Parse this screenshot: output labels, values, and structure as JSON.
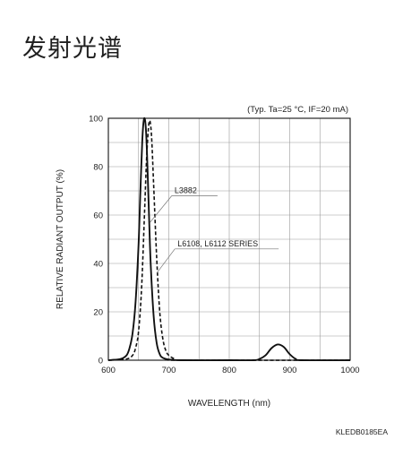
{
  "page": {
    "title": "发射光谱",
    "figure_code": "KLEDB0185EA"
  },
  "chart_data": {
    "type": "line",
    "title": "",
    "condition_note": "(Typ. Ta=25 °C, IF=20 mA)",
    "xlabel": "WAVELENGTH (nm)",
    "ylabel": "RELATIVE RADIANT OUTPUT (%)",
    "xlim": [
      600,
      1000
    ],
    "ylim": [
      0,
      100
    ],
    "x_major_ticks": [
      600,
      700,
      800,
      900,
      1000
    ],
    "y_major_ticks": [
      0,
      20,
      40,
      60,
      80,
      100
    ],
    "grid": true,
    "legend": "none (series labeled by annotations)",
    "series": [
      {
        "name": "L3882",
        "style": "solid",
        "color": "#111111",
        "x": [
          600,
          620,
          630,
          635,
          640,
          645,
          650,
          653,
          656,
          658,
          660,
          662,
          664,
          667,
          670,
          675,
          680,
          685,
          690,
          700,
          720,
          800,
          840,
          850,
          860,
          870,
          880,
          890,
          900,
          910,
          920,
          1000
        ],
        "y": [
          0,
          0.5,
          2,
          5,
          11,
          24,
          48,
          70,
          90,
          98,
          100,
          96,
          85,
          62,
          40,
          18,
          7,
          2.5,
          1,
          0.3,
          0,
          0,
          0,
          0.5,
          2,
          5,
          6.5,
          5.5,
          2.5,
          0.5,
          0,
          0
        ]
      },
      {
        "name": "L6108, L6112 SERIES",
        "style": "dashed",
        "color": "#111111",
        "x": [
          600,
          630,
          640,
          645,
          650,
          655,
          660,
          663,
          666,
          668,
          670,
          672,
          675,
          680,
          685,
          690,
          695,
          700,
          710,
          720,
          1000
        ],
        "y": [
          0,
          0.5,
          2,
          5,
          12,
          30,
          62,
          82,
          95,
          99,
          97,
          90,
          72,
          42,
          20,
          9,
          4,
          2,
          0.5,
          0,
          0
        ]
      }
    ],
    "annotations": [
      {
        "text": "L3882",
        "target_series": "L3882",
        "label_at": [
          705,
          68
        ],
        "arrow_to": [
          669,
          57
        ]
      },
      {
        "text": "L6108, L6112 SERIES",
        "target_series": "L6108, L6112 SERIES",
        "label_at": [
          710,
          46
        ],
        "arrow_to": [
          680,
          36
        ]
      }
    ]
  }
}
